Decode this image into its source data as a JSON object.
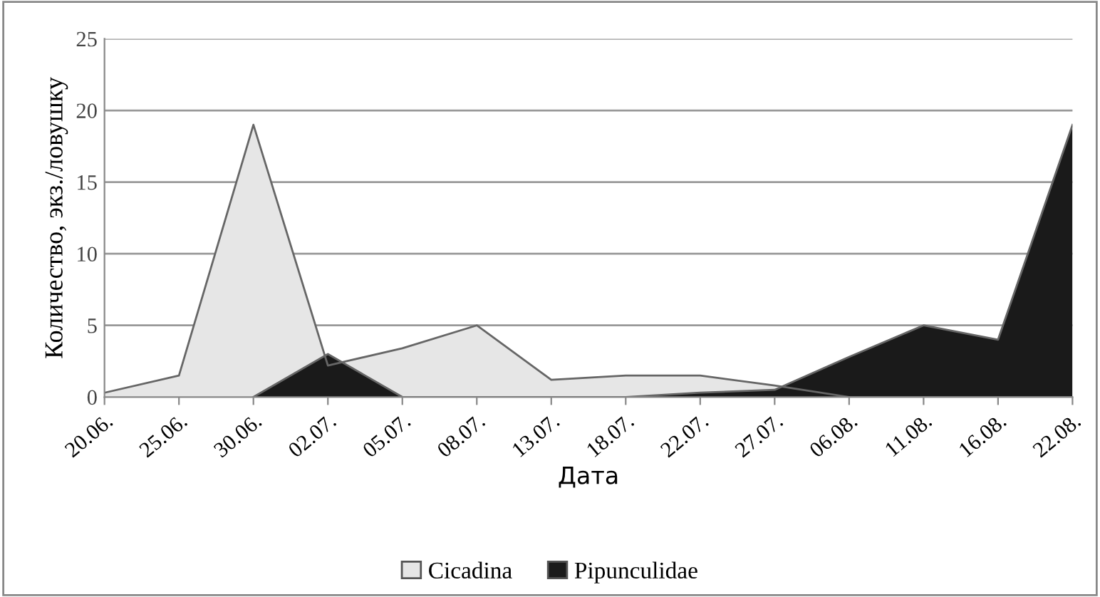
{
  "chart_data": {
    "type": "area",
    "xlabel": "Дата",
    "ylabel": "Количество, экз./ловушку",
    "categories": [
      "20.06.",
      "25.06.",
      "30.06.",
      "02.07.",
      "05.07.",
      "08.07.",
      "13.07.",
      "18.07.",
      "22.07.",
      "27.07.",
      "06.08.",
      "11.08.",
      "16.08.",
      "22.08."
    ],
    "series": [
      {
        "name": "Cicadina",
        "color": "#e6e6e6",
        "values": [
          0.3,
          1.5,
          19,
          2.2,
          3.4,
          5,
          1.2,
          1.5,
          1.5,
          0.8,
          0,
          0,
          0,
          0
        ]
      },
      {
        "name": "Pipunculidae",
        "color": "#1a1a1a",
        "values": [
          null,
          null,
          0,
          3,
          0,
          0,
          0,
          0,
          0.3,
          0.5,
          2.8,
          5,
          4,
          19
        ]
      }
    ],
    "ylim": [
      0,
      25
    ],
    "yticks": [
      0,
      5,
      10,
      15,
      20,
      25
    ],
    "grid": "y",
    "legend": "bottom"
  }
}
